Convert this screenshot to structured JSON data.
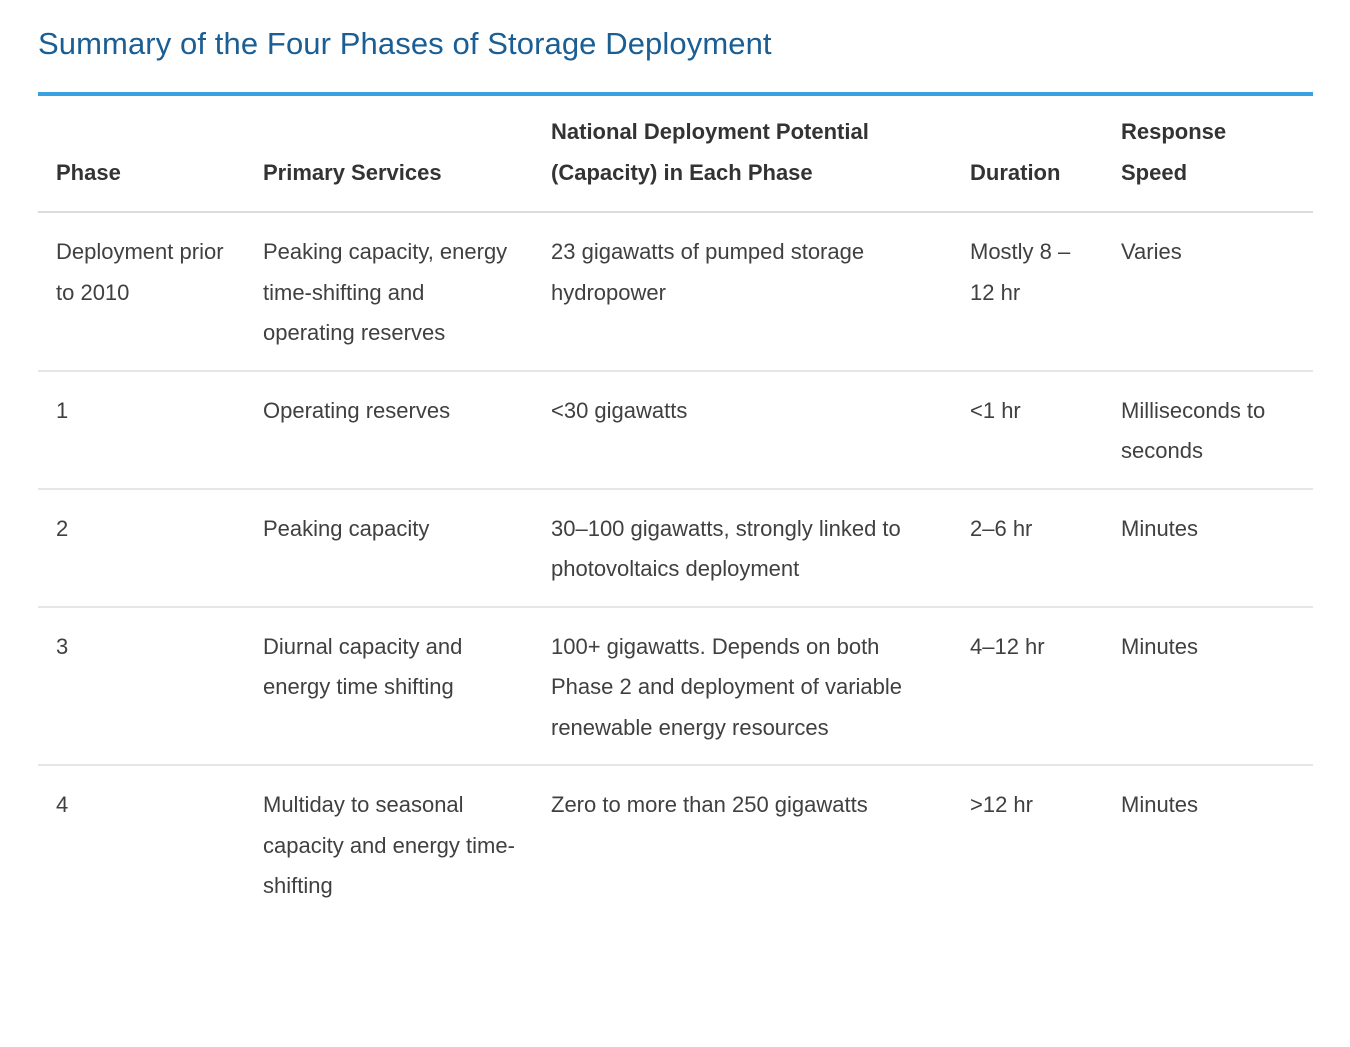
{
  "title": "Summary of the Four Phases of Storage Deployment",
  "table": {
    "headers": [
      "Phase",
      "Primary Services",
      "National Deployment Potential (Capacity) in Each Phase",
      "Duration",
      "Response Speed"
    ],
    "rows": [
      [
        "Deployment prior to 2010",
        "Peaking capacity, energy time-shifting and operating reserves",
        "23 gigawatts of pumped storage hydropower",
        "Mostly 8 –12 hr",
        "Varies"
      ],
      [
        "1",
        "Operating reserves",
        "<30 gigawatts",
        "<1 hr",
        "Milliseconds to seconds"
      ],
      [
        "2",
        "Peaking capacity",
        "30–100 gigawatts, strongly linked to photovoltaics deployment",
        "2–6 hr",
        "Minutes"
      ],
      [
        "3",
        "Diurnal capacity and energy time shifting",
        "100+ gigawatts. Depends on both Phase 2 and deployment of variable renewable energy resources",
        "4–12 hr",
        "Minutes"
      ],
      [
        "4",
        "Multiday to seasonal capacity and energy time-shifting",
        "Zero to more than 250 gigawatts",
        ">12 hr",
        "Minutes"
      ]
    ]
  }
}
